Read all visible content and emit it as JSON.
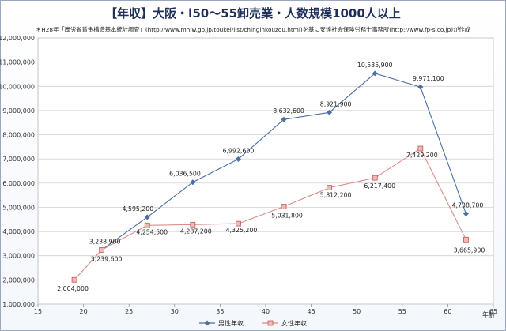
{
  "chart_data": {
    "type": "line",
    "title": "【年収】大阪・l50～55卸売業・人数規模1000人以上",
    "note": "＊H28年「厚労省賃金構造基本統計調査」(http://www.mhlw.go.jp/toukei/list/chinginkouzou.html)を基に安達社会保険労務士事務所(http://www.fp-s.co.jp)が作成",
    "xlabel": "年齢",
    "ylabel": "",
    "xlim": [
      15,
      65
    ],
    "ylim": [
      1000000,
      12000000
    ],
    "x_ticks": [
      "15",
      "20",
      "25",
      "30",
      "35",
      "40",
      "45",
      "50",
      "55",
      "60",
      "65"
    ],
    "y_ticks": [
      "1,000,000",
      "2,000,000",
      "3,000,000",
      "4,000,000",
      "5,000,000",
      "6,000,000",
      "7,000,000",
      "8,000,000",
      "9,000,000",
      "10,000,000",
      "11,000,000",
      "12,000,000"
    ],
    "grid": true,
    "series": [
      {
        "name": "男性年収",
        "color": "#4a6fa5",
        "marker": "diamond",
        "x": [
          22,
          27,
          32,
          37,
          42,
          47,
          52,
          57,
          62
        ],
        "values": [
          3238900,
          4595200,
          6036500,
          6992600,
          8632600,
          8921900,
          10535900,
          9971100,
          4738700
        ],
        "labels": [
          "3,238,900",
          "4,595,200",
          "6,036,500",
          "6,992,600",
          "8,632,600",
          "8,921,900",
          "10,535,900",
          "9,971,100",
          "4,738,700"
        ]
      },
      {
        "name": "女性年収",
        "color": "#d98c88",
        "marker": "square",
        "x": [
          19,
          22,
          27,
          32,
          37,
          42,
          47,
          52,
          57,
          62
        ],
        "values": [
          2004000,
          3239600,
          4254500,
          4287200,
          4325200,
          5031800,
          5812200,
          6217400,
          7429200,
          3665900
        ],
        "labels": [
          "2,004,000",
          "3,239,600",
          "4,254,500",
          "4,287,200",
          "4,325,200",
          "5,031,800",
          "5,812,200",
          "6,217,400",
          "7,429,200",
          "3,665,900"
        ]
      }
    ]
  }
}
